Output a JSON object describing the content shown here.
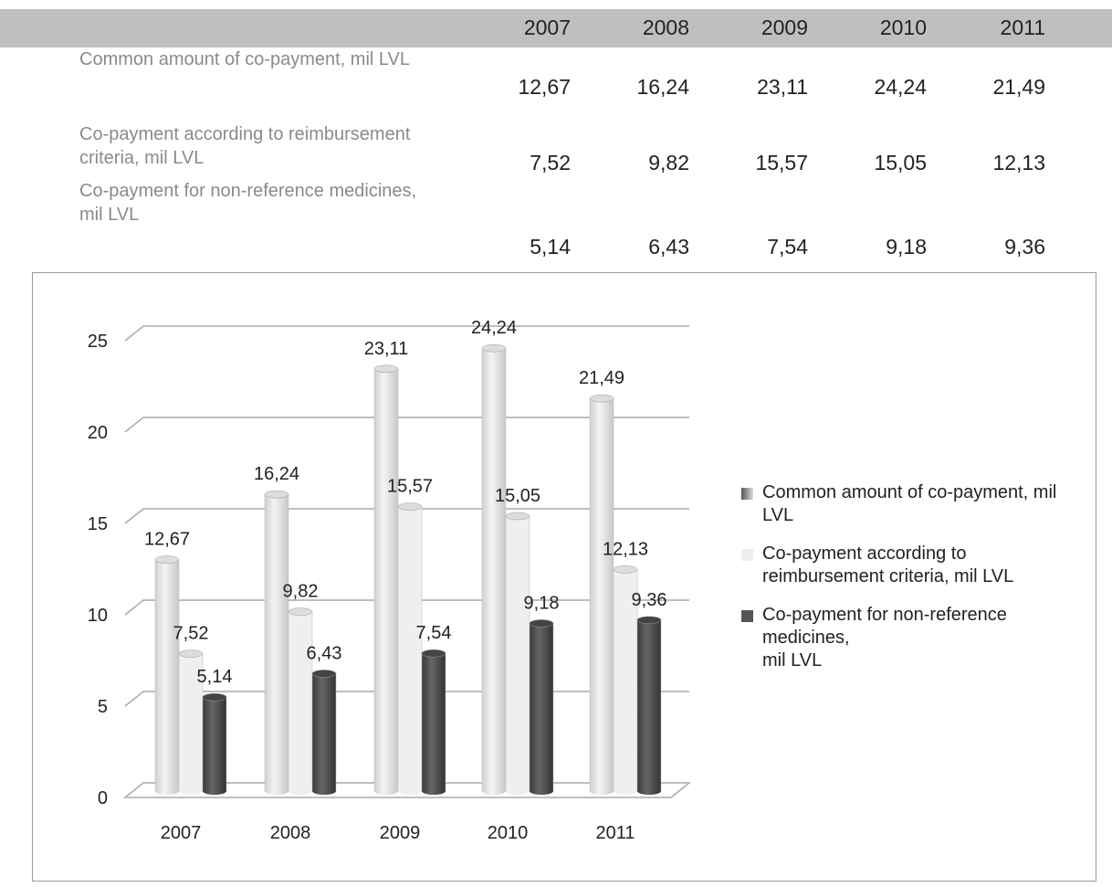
{
  "table": {
    "header": [
      "2007",
      "2008",
      "2009",
      "2010",
      "2011"
    ],
    "rows": [
      {
        "label": "Common amount of co-payment, mil LVL",
        "values": [
          "12,67",
          "16,24",
          "23,11",
          "24,24",
          "21,49"
        ]
      },
      {
        "label": "Co-payment according to reimbursement criteria, mil LVL",
        "values": [
          "7,52",
          "9,82",
          "15,57",
          "15,05",
          "12,13"
        ]
      },
      {
        "label": "Co-payment for non-reference medicines,\nmil LVL",
        "values": [
          "5,14",
          "6,43",
          "7,54",
          "9,18",
          "9,36"
        ]
      }
    ]
  },
  "chart_data": {
    "type": "bar",
    "categories": [
      "2007",
      "2008",
      "2009",
      "2010",
      "2011"
    ],
    "series": [
      {
        "name": "Common amount of co-payment, mil LVL",
        "color": "#e4e4e4",
        "values": [
          12.67,
          16.24,
          23.11,
          24.24,
          21.49
        ],
        "value_labels": [
          "12,67",
          "16,24",
          "23,11",
          "24,24",
          "21,49"
        ]
      },
      {
        "name": "Co-payment according to reimbursement criteria, mil LVL",
        "color": "#efefef",
        "values": [
          7.52,
          9.82,
          15.57,
          15.05,
          12.13
        ],
        "value_labels": [
          "7,52",
          "9,82",
          "15,57",
          "15,05",
          "12,13"
        ]
      },
      {
        "name": "Co-payment for non-reference medicines,\nmil LVL",
        "color": "#555555",
        "values": [
          5.14,
          6.43,
          7.54,
          9.18,
          9.36
        ],
        "value_labels": [
          "5,14",
          "6,43",
          "7,54",
          "9,18",
          "9,36"
        ]
      }
    ],
    "ylim": [
      0,
      25
    ],
    "yticks": [
      0,
      5,
      10,
      15,
      20,
      25
    ],
    "grid": true
  }
}
